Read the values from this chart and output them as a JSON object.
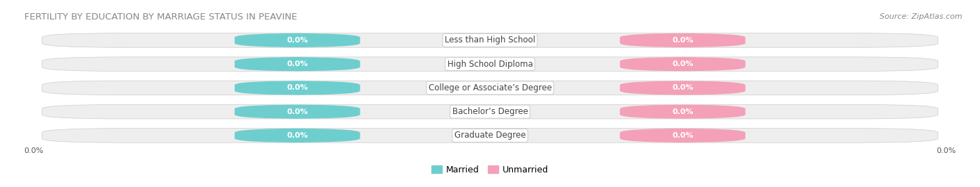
{
  "title": "FERTILITY BY EDUCATION BY MARRIAGE STATUS IN PEAVINE",
  "source": "Source: ZipAtlas.com",
  "categories": [
    "Less than High School",
    "High School Diploma",
    "College or Associate’s Degree",
    "Bachelor’s Degree",
    "Graduate Degree"
  ],
  "married_values": [
    0.0,
    0.0,
    0.0,
    0.0,
    0.0
  ],
  "unmarried_values": [
    0.0,
    0.0,
    0.0,
    0.0,
    0.0
  ],
  "married_color": "#6ecece",
  "unmarried_color": "#f4a0b8",
  "bar_bg_color": "#eeeeee",
  "bar_border_color": "#cccccc",
  "background_color": "#ffffff",
  "x_left_label": "0.0%",
  "x_right_label": "0.0%",
  "legend_married": "Married",
  "legend_unmarried": "Unmarried",
  "title_color": "#888888",
  "source_color": "#888888",
  "value_label_color": "#ffffff",
  "cat_label_color": "#444444"
}
